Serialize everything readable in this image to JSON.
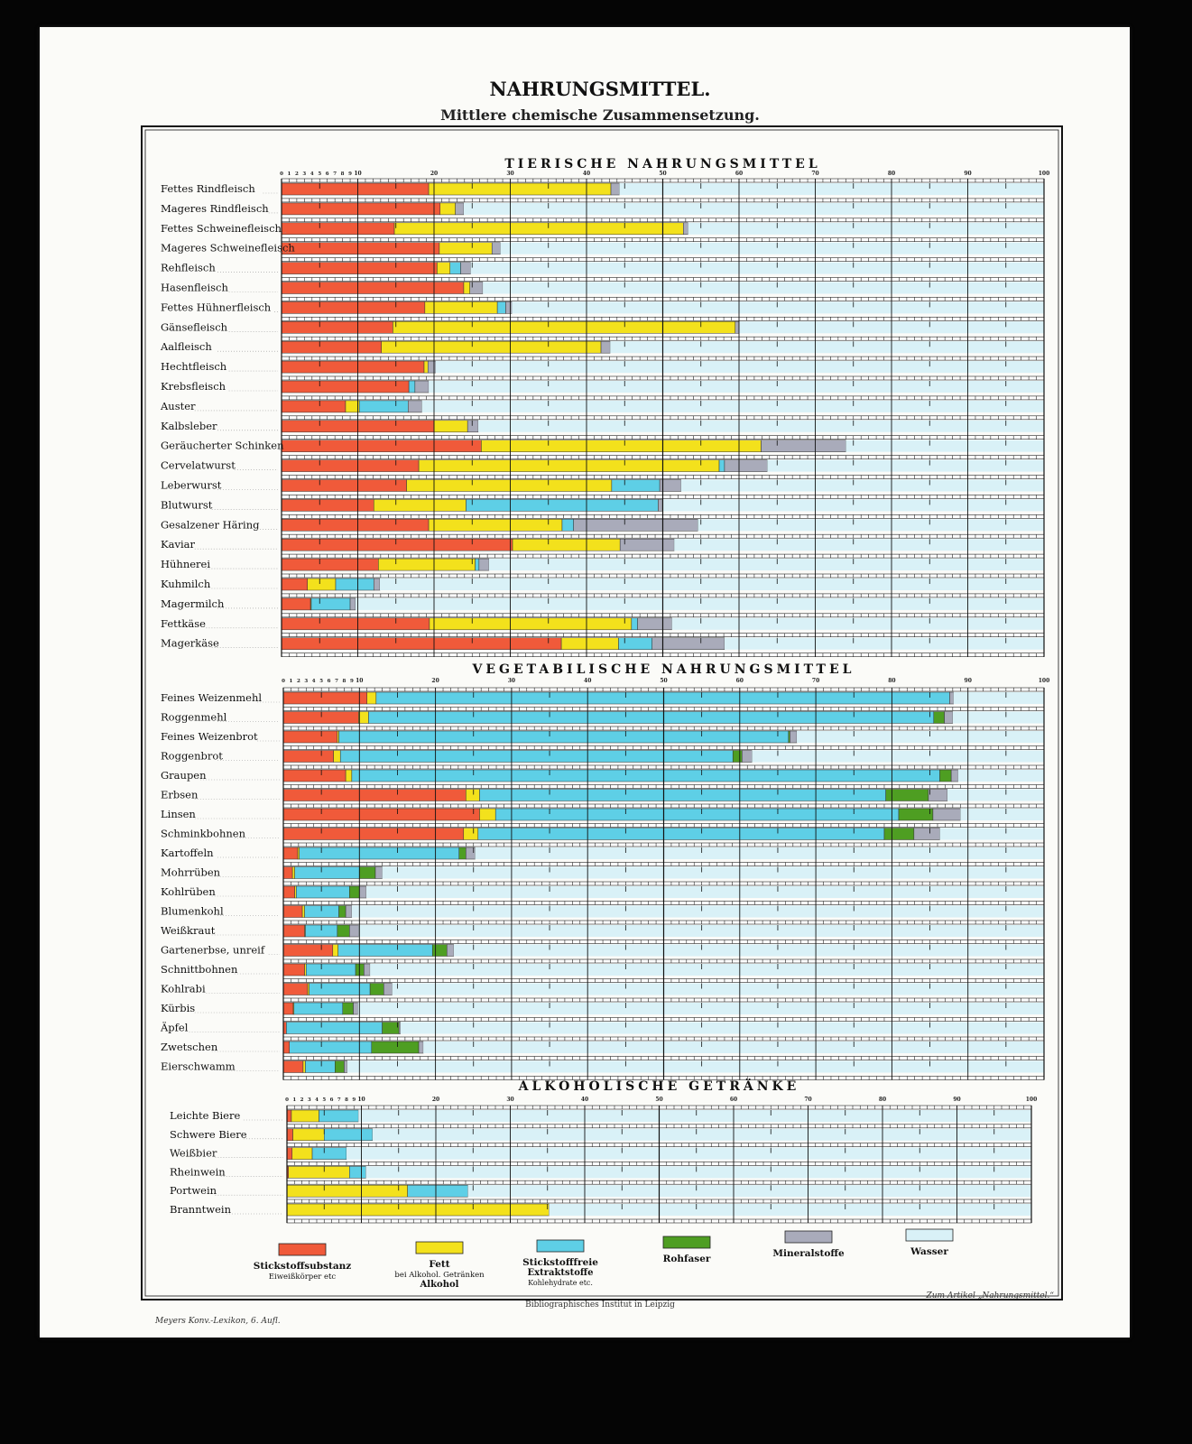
{
  "title": "NAHRUNGSMITTEL.",
  "subtitle": "Mittlere chemische Zusammensetzung.",
  "footer": {
    "left": "Meyers Konv.-Lexikon, 6. Aufl.",
    "center": "Bibliographisches Institut in Leipzig",
    "right": "Zum Artikel „Nahrungsmittel.“"
  },
  "chart_data": {
    "type": "bar",
    "orientation": "horizontal",
    "stacked": true,
    "xlim": [
      0,
      100
    ],
    "unit": "%",
    "tick_labels": [
      "0",
      "1",
      "2",
      "3",
      "4",
      "5",
      "6",
      "7",
      "8",
      "9",
      "10",
      "20",
      "30",
      "40",
      "50",
      "60",
      "70",
      "80",
      "90",
      "100"
    ],
    "grid": true,
    "legend_position": "bottom",
    "components": [
      {
        "key": "N",
        "name": "Stickstoffsubstanz",
        "note": "Eiweißkörper etc",
        "color": "#f05a3a"
      },
      {
        "key": "F",
        "name": "Fett",
        "note": "bei Alkohol. Getränken",
        "note2": "Alkohol",
        "color": "#f3e11c"
      },
      {
        "key": "E",
        "name": "Stickstofffreie",
        "note": "Extraktstoffe",
        "note2": "Kohlehydrate etc.",
        "color": "#5ecfe6"
      },
      {
        "key": "R",
        "name": "Rohfaser",
        "color": "#4e9e22"
      },
      {
        "key": "M",
        "name": "Mineralstoffe",
        "color": "#a9abba"
      },
      {
        "key": "W",
        "name": "Wasser",
        "color": "#d9f1f7"
      }
    ],
    "sections": [
      {
        "title": "TIERISCHE NAHRUNGSMITTEL",
        "rows": [
          {
            "label": "Fettes Rindfleisch",
            "N": 19.3,
            "F": 23.9,
            "E": 0,
            "R": 0,
            "M": 1.1,
            "W": 55.7
          },
          {
            "label": "Mageres Rindfleisch",
            "N": 20.8,
            "F": 2.0,
            "E": 0,
            "R": 0,
            "M": 1.1,
            "W": 76.1
          },
          {
            "label": "Fettes Schweinefleisch",
            "N": 14.8,
            "F": 37.9,
            "E": 0,
            "R": 0,
            "M": 0.6,
            "W": 46.7
          },
          {
            "label": "Mageres Schweinefleisch",
            "N": 20.7,
            "F": 6.9,
            "E": 0,
            "R": 0,
            "M": 1.1,
            "W": 71.3
          },
          {
            "label": "Rehfleisch",
            "N": 20.4,
            "F": 1.7,
            "E": 1.4,
            "R": 0,
            "M": 1.3,
            "W": 75.2
          },
          {
            "label": "Hasenfleisch",
            "N": 23.9,
            "F": 0.8,
            "E": 0,
            "R": 0,
            "M": 1.7,
            "W": 73.6
          },
          {
            "label": "Fettes Hühnerfleisch",
            "N": 18.8,
            "F": 9.5,
            "E": 1.1,
            "R": 0,
            "M": 0.8,
            "W": 69.8
          },
          {
            "label": "Gänsefleisch",
            "N": 14.6,
            "F": 44.9,
            "E": 0,
            "R": 0,
            "M": 0.5,
            "W": 40.0
          },
          {
            "label": "Aalfleisch",
            "N": 13.1,
            "F": 28.8,
            "E": 0,
            "R": 0,
            "M": 1.2,
            "W": 56.9
          },
          {
            "label": "Hechtfleisch",
            "N": 18.7,
            "F": 0.5,
            "E": 0,
            "R": 0,
            "M": 1.0,
            "W": 79.8
          },
          {
            "label": "Krebsfleisch",
            "N": 16.7,
            "F": 0,
            "E": 0.8,
            "R": 0,
            "M": 1.8,
            "W": 80.7
          },
          {
            "label": "Auster",
            "N": 8.4,
            "F": 1.8,
            "E": 6.4,
            "R": 0,
            "M": 1.8,
            "W": 81.6
          },
          {
            "label": "Kalbsleber",
            "N": 20.0,
            "F": 4.4,
            "E": 0,
            "R": 0,
            "M": 1.4,
            "W": 74.2
          },
          {
            "label": "Geräucherter Schinken",
            "N": 26.2,
            "F": 36.7,
            "E": 0,
            "R": 0,
            "M": 11.1,
            "W": 26.0
          },
          {
            "label": "Cervelatwurst",
            "N": 18.0,
            "F": 39.4,
            "E": 0.7,
            "R": 0,
            "M": 5.6,
            "W": 36.3
          },
          {
            "label": "Leberwurst",
            "N": 16.4,
            "F": 26.9,
            "E": 6.3,
            "R": 0,
            "M": 2.8,
            "W": 47.6
          },
          {
            "label": "Blutwurst",
            "N": 12.1,
            "F": 12.1,
            "E": 25.2,
            "R": 0,
            "M": 0.5,
            "W": 50.1
          },
          {
            "label": "Gesalzener Häring",
            "N": 19.3,
            "F": 17.5,
            "E": 1.5,
            "R": 0,
            "M": 16.3,
            "W": 45.4
          },
          {
            "label": "Kaviar",
            "N": 30.3,
            "F": 14.1,
            "E": 0,
            "R": 0,
            "M": 7.1,
            "W": 48.5
          },
          {
            "label": "Hühnerei",
            "N": 12.7,
            "F": 12.7,
            "E": 0.5,
            "R": 0,
            "M": 1.3,
            "W": 72.8
          },
          {
            "label": "Kuhmilch",
            "N": 3.4,
            "F": 3.7,
            "E": 5.0,
            "R": 0,
            "M": 0.8,
            "W": 87.1
          },
          {
            "label": "Magermilch",
            "N": 3.8,
            "F": 0.1,
            "E": 5.1,
            "R": 0,
            "M": 0.7,
            "W": 90.3
          },
          {
            "label": "Fettkäse",
            "N": 19.4,
            "F": 26.5,
            "E": 0.8,
            "R": 0,
            "M": 4.5,
            "W": 48.8
          },
          {
            "label": "Magerkäse",
            "N": 36.7,
            "F": 7.5,
            "E": 4.4,
            "R": 0,
            "M": 9.5,
            "W": 41.9
          }
        ]
      },
      {
        "title": "VEGETABILISCHE NAHRUNGSMITTEL",
        "rows": [
          {
            "label": "Feines Weizenmehl",
            "N": 11.0,
            "F": 1.2,
            "E": 75.4,
            "R": 0,
            "M": 0.5,
            "W": 11.9
          },
          {
            "label": "Roggenmehl",
            "N": 9.9,
            "F": 1.3,
            "E": 74.3,
            "R": 1.4,
            "M": 1.1,
            "W": 12.0
          },
          {
            "label": "Feines Weizenbrot",
            "N": 7.1,
            "F": 0.2,
            "E": 59.1,
            "R": 0.2,
            "M": 0.9,
            "W": 32.5
          },
          {
            "label": "Roggenbrot",
            "N": 6.6,
            "F": 0.9,
            "E": 51.6,
            "R": 1.2,
            "M": 1.3,
            "W": 38.4
          },
          {
            "label": "Graupen",
            "N": 8.2,
            "F": 0.8,
            "E": 77.3,
            "R": 1.5,
            "M": 0.9,
            "W": 11.3
          },
          {
            "label": "Erbsen",
            "N": 24.0,
            "F": 1.8,
            "E": 53.4,
            "R": 5.6,
            "M": 2.5,
            "W": 12.7
          },
          {
            "label": "Linsen",
            "N": 25.8,
            "F": 2.1,
            "E": 53.0,
            "R": 4.5,
            "M": 3.6,
            "W": 11.0
          },
          {
            "label": "Schminkbohnen",
            "N": 23.7,
            "F": 1.9,
            "E": 53.4,
            "R": 3.9,
            "M": 3.4,
            "W": 13.7
          },
          {
            "label": "Kartoffeln",
            "N": 1.9,
            "F": 0.2,
            "E": 21.0,
            "R": 0.9,
            "M": 1.2,
            "W": 74.8
          },
          {
            "label": "Mohrrüben",
            "N": 1.2,
            "F": 0.3,
            "E": 8.5,
            "R": 2.1,
            "M": 0.9,
            "W": 87.0
          },
          {
            "label": "Kohlrüben",
            "N": 1.5,
            "F": 0.2,
            "E": 7.0,
            "R": 1.3,
            "M": 0.9,
            "W": 89.1
          },
          {
            "label": "Blumenkohl",
            "N": 2.5,
            "F": 0.3,
            "E": 4.5,
            "R": 0.9,
            "M": 0.8,
            "W": 91.0
          },
          {
            "label": "Weißkraut",
            "N": 2.8,
            "F": 0.1,
            "E": 4.2,
            "R": 1.6,
            "M": 1.2,
            "W": 90.1
          },
          {
            "label": "Gartenerbse, unreif",
            "N": 6.5,
            "F": 0.7,
            "E": 12.4,
            "R": 1.9,
            "M": 0.9,
            "W": 77.6
          },
          {
            "label": "Schnittbohnen",
            "N": 2.8,
            "F": 0.2,
            "E": 6.5,
            "R": 1.1,
            "M": 0.8,
            "W": 88.6
          },
          {
            "label": "Kohlrabi",
            "N": 3.2,
            "F": 0.2,
            "E": 8.0,
            "R": 1.8,
            "M": 1.1,
            "W": 85.7
          },
          {
            "label": "Kürbis",
            "N": 1.3,
            "F": 0.1,
            "E": 6.4,
            "R": 1.4,
            "M": 0.6,
            "W": 90.2
          },
          {
            "label": "Äpfel",
            "N": 0.4,
            "F": 0,
            "E": 12.6,
            "R": 2.2,
            "M": 0.2,
            "W": 84.6
          },
          {
            "label": "Zwetschen",
            "N": 0.8,
            "F": 0,
            "E": 10.8,
            "R": 6.2,
            "M": 0.6,
            "W": 81.6
          },
          {
            "label": "Eierschwamm",
            "N": 2.6,
            "F": 0.3,
            "E": 3.9,
            "R": 1.2,
            "M": 0.4,
            "W": 91.6
          }
        ]
      },
      {
        "title": "ALKOHOLISCHE GETRÄNKE",
        "rows": [
          {
            "label": "Leichte Biere",
            "N": 0.6,
            "F": 3.7,
            "E": 5.3,
            "R": 0,
            "M": 0,
            "W": 90.4
          },
          {
            "label": "Schwere Biere",
            "N": 0.8,
            "F": 4.2,
            "E": 6.5,
            "R": 0,
            "M": 0,
            "W": 88.5
          },
          {
            "label": "Weißbier",
            "N": 0.7,
            "F": 2.7,
            "E": 4.6,
            "R": 0,
            "M": 0,
            "W": 92.0
          },
          {
            "label": "Rheinwein",
            "N": 0.2,
            "F": 8.2,
            "E": 2.2,
            "R": 0,
            "M": 0,
            "W": 89.4
          },
          {
            "label": "Portwein",
            "N": 0,
            "F": 16.2,
            "E": 8.1,
            "R": 0,
            "M": 0,
            "W": 75.7
          },
          {
            "label": "Branntwein",
            "N": 0,
            "F": 35.2,
            "E": 0,
            "R": 0,
            "M": 0,
            "W": 64.8
          }
        ]
      }
    ]
  }
}
